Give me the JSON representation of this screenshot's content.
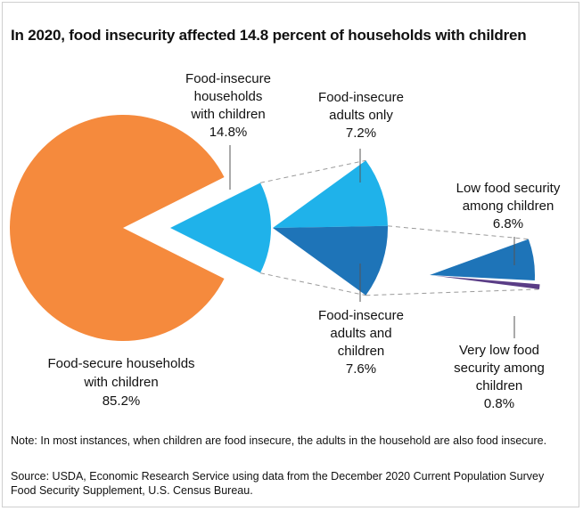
{
  "chart_data": {
    "type": "pie",
    "title": "In 2020, food insecurity affected 14.8 percent of households with children",
    "slices": [
      {
        "label": "Food-secure households with children",
        "value": 85.2,
        "display": "85.2%",
        "color": "#f58a3d"
      },
      {
        "label": "Food-insecure households with children",
        "value": 14.8,
        "display": "14.8%",
        "color": "#1fb2ea"
      }
    ],
    "breakdowns": [
      {
        "parent": "Food-insecure households with children",
        "slices": [
          {
            "label": "Food-insecure adults only",
            "value": 7.2,
            "display": "7.2%",
            "color": "#1fb2ea"
          },
          {
            "label": "Food-insecure adults and children",
            "value": 7.6,
            "display": "7.6%",
            "color": "#1e74b8"
          }
        ]
      },
      {
        "parent": "Food-insecure adults and children",
        "slices": [
          {
            "label": "Low food security among children",
            "value": 6.8,
            "display": "6.8%",
            "color": "#1e74b8"
          },
          {
            "label": "Very low food security among children",
            "value": 0.8,
            "display": "0.8%",
            "color": "#5a3d86"
          }
        ]
      }
    ]
  },
  "labels": {
    "food_secure": [
      "Food-secure households",
      "with children",
      "85.2%"
    ],
    "food_insecure": [
      "Food-insecure",
      "households",
      "with children",
      "14.8%"
    ],
    "adults_only": [
      "Food-insecure",
      "adults only",
      "7.2%"
    ],
    "adults_and_children": [
      "Food-insecure",
      "adults and",
      "children",
      "7.6%"
    ],
    "low_security": [
      "Low food security",
      "among children",
      "6.8%"
    ],
    "very_low_security": [
      "Very low food",
      "security among",
      "children",
      "0.8%"
    ]
  },
  "note": "Note: In most instances, when children are food insecure, the adults in the household are also food insecure.",
  "source": "Source: USDA, Economic Research Service using data from the December 2020 Current Population Survey Food Security Supplement, U.S. Census Bureau."
}
